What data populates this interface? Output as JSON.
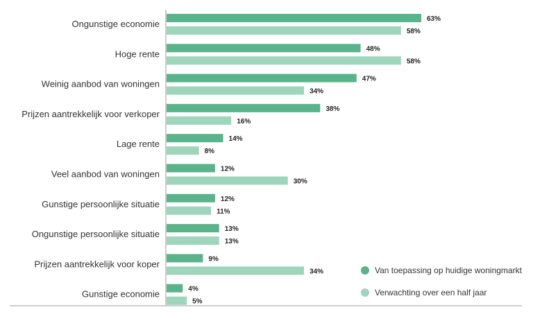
{
  "chart_data": {
    "type": "bar",
    "orientation": "horizontal",
    "value_format": "percent",
    "categories": [
      "Ongunstige economie",
      "Hoge rente",
      "Weinig aanbod van woningen",
      "Prijzen aantrekkelijk voor verkoper",
      "Lage rente",
      "Veel aanbod van woningen",
      "Gunstige persoonlijke situatie",
      "Ongunstige persoonlijke situatie",
      "Prijzen aantrekkelijk voor koper",
      "Gunstige economie"
    ],
    "series": [
      {
        "name": "Van toepassing op huidige woningmarkt",
        "color": "#5bb38c",
        "values": [
          63,
          48,
          47,
          38,
          14,
          12,
          12,
          13,
          9,
          4
        ]
      },
      {
        "name": "Verwachting over een half jaar",
        "color": "#9fd4bd",
        "values": [
          58,
          58,
          34,
          16,
          8,
          30,
          11,
          13,
          34,
          5
        ]
      }
    ],
    "xlim": [
      0,
      65
    ],
    "legend_position": "bottom-right",
    "grid": false
  }
}
